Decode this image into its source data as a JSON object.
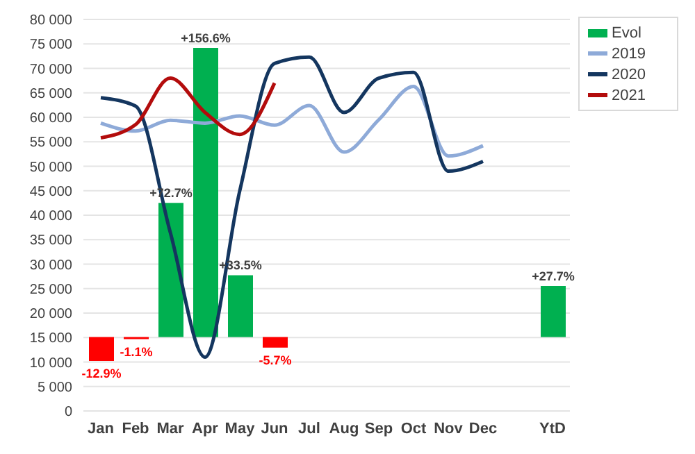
{
  "chart_data": {
    "type": "line",
    "categories": [
      "Jan",
      "Feb",
      "Mar",
      "Apr",
      "May",
      "Jun",
      "Jul",
      "Aug",
      "Sep",
      "Oct",
      "Nov",
      "Dec",
      null,
      "YtD"
    ],
    "ylim": [
      0,
      80000
    ],
    "yticks": [
      {
        "value": 0,
        "label": "0"
      },
      {
        "value": 5000,
        "label": "5 000"
      },
      {
        "value": 10000,
        "label": "10 000"
      },
      {
        "value": 15000,
        "label": "15 000"
      },
      {
        "value": 20000,
        "label": "20 000"
      },
      {
        "value": 25000,
        "label": "25 000"
      },
      {
        "value": 30000,
        "label": "30 000"
      },
      {
        "value": 35000,
        "label": "35 000"
      },
      {
        "value": 40000,
        "label": "40 000"
      },
      {
        "value": 45000,
        "label": "45 000"
      },
      {
        "value": 50000,
        "label": "50 000"
      },
      {
        "value": 55000,
        "label": "55 000"
      },
      {
        "value": 60000,
        "label": "60 000"
      },
      {
        "value": 65000,
        "label": "65 000"
      },
      {
        "value": 70000,
        "label": "70 000"
      },
      {
        "value": 75000,
        "label": "75 000"
      },
      {
        "value": 80000,
        "label": "80 000"
      }
    ],
    "y2lim": [
      -40,
      172
    ],
    "grid": "y",
    "legend": "top right",
    "marker": "none",
    "line_style": "solid",
    "series": [
      {
        "name": "Evol",
        "type": "bar",
        "axis": "y2",
        "color": "#00b050",
        "colors": [
          "#ff0000",
          "#ff0000",
          "#00b050",
          "#00b050",
          "#00b050",
          "#ff0000",
          null,
          null,
          null,
          null,
          null,
          null,
          null,
          "#00b050"
        ],
        "values": [
          -12.9,
          -1.1,
          72.7,
          156.6,
          33.5,
          -5.7,
          null,
          null,
          null,
          null,
          null,
          null,
          null,
          27.7
        ],
        "value_labels": [
          "-12.9%",
          "-1.1%",
          "+72.7%",
          "+156.6%",
          "+33.5%",
          "-5.7%",
          null,
          null,
          null,
          null,
          null,
          null,
          null,
          "+27.7%"
        ]
      },
      {
        "name": "2019",
        "color": "#8eaad8",
        "values": [
          58800,
          57200,
          59400,
          58800,
          60300,
          58400,
          62400,
          52900,
          59500,
          66300,
          52100,
          54200,
          null,
          null
        ]
      },
      {
        "name": "2020",
        "color": "#14365f",
        "values": [
          64000,
          62300,
          36500,
          11000,
          45000,
          71000,
          72300,
          61000,
          68000,
          69200,
          49000,
          51000,
          null,
          null
        ]
      },
      {
        "name": "2021",
        "color": "#b30c0c",
        "values": [
          55800,
          58500,
          68000,
          61000,
          56500,
          67000,
          null,
          null,
          null,
          null,
          null,
          null,
          null,
          null
        ]
      }
    ]
  }
}
